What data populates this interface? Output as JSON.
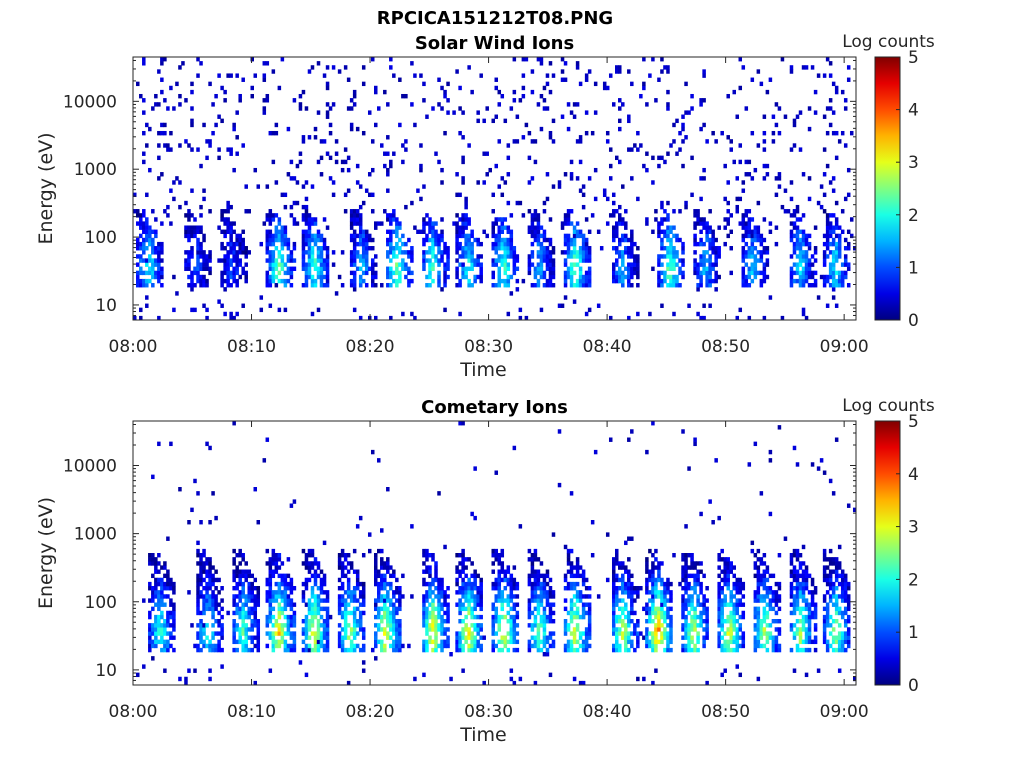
{
  "figure": {
    "title": "RPCICA151212T08.PNG"
  },
  "chart_data": [
    {
      "type": "heatmap",
      "title": "Solar Wind Ions",
      "xlabel": "Time",
      "ylabel": "Energy (eV)",
      "xlim": [
        "08:00",
        "09:01"
      ],
      "ylim": [
        6,
        45000
      ],
      "yscale": "log",
      "xticks": [
        "08:00",
        "08:10",
        "08:20",
        "08:30",
        "08:40",
        "08:50",
        "09:00"
      ],
      "yticks": [
        "10",
        "100",
        "1000",
        "10000"
      ],
      "colorbar": {
        "label": "Log counts",
        "range": [
          0,
          5
        ],
        "ticks": [
          "0",
          "1",
          "2",
          "3",
          "4",
          "5"
        ]
      },
      "grid": false,
      "bursts": [
        {
          "t": "08:01",
          "peak": 2.0
        },
        {
          "t": "08:05",
          "peak": 1.0
        },
        {
          "t": "08:08",
          "peak": 1.0
        },
        {
          "t": "08:12",
          "peak": 2.5
        },
        {
          "t": "08:15",
          "peak": 2.3
        },
        {
          "t": "08:19",
          "peak": 1.6
        },
        {
          "t": "08:22",
          "peak": 2.6
        },
        {
          "t": "08:25",
          "peak": 2.2
        },
        {
          "t": "08:28",
          "peak": 2.0
        },
        {
          "t": "08:31",
          "peak": 2.3
        },
        {
          "t": "08:34",
          "peak": 1.5
        },
        {
          "t": "08:37",
          "peak": 2.6
        },
        {
          "t": "08:41",
          "peak": 1.5
        },
        {
          "t": "08:45",
          "peak": 2.5
        },
        {
          "t": "08:48",
          "peak": 1.6
        },
        {
          "t": "08:52",
          "peak": 1.7
        },
        {
          "t": "08:56",
          "peak": 1.8
        },
        {
          "t": "08:59",
          "peak": 1.9
        }
      ]
    },
    {
      "type": "heatmap",
      "title": "Cometary Ions",
      "xlabel": "Time",
      "ylabel": "Energy (eV)",
      "xlim": [
        "08:00",
        "09:01"
      ],
      "ylim": [
        6,
        45000
      ],
      "yscale": "log",
      "xticks": [
        "08:00",
        "08:10",
        "08:20",
        "08:30",
        "08:40",
        "08:50",
        "09:00"
      ],
      "yticks": [
        "10",
        "100",
        "1000",
        "10000"
      ],
      "colorbar": {
        "label": "Log counts",
        "range": [
          0,
          5
        ],
        "ticks": [
          "0",
          "1",
          "2",
          "3",
          "4",
          "5"
        ]
      },
      "grid": false,
      "bursts": [
        {
          "t": "08:02",
          "peak": 2.2
        },
        {
          "t": "08:06",
          "peak": 2.0
        },
        {
          "t": "08:09",
          "peak": 2.3
        },
        {
          "t": "08:12",
          "peak": 3.5
        },
        {
          "t": "08:15",
          "peak": 3.3
        },
        {
          "t": "08:18",
          "peak": 2.9
        },
        {
          "t": "08:21",
          "peak": 3.3
        },
        {
          "t": "08:25",
          "peak": 3.4
        },
        {
          "t": "08:28",
          "peak": 3.4
        },
        {
          "t": "08:31",
          "peak": 3.3
        },
        {
          "t": "08:34",
          "peak": 2.5
        },
        {
          "t": "08:37",
          "peak": 3.2
        },
        {
          "t": "08:41",
          "peak": 3.0
        },
        {
          "t": "08:44",
          "peak": 3.9
        },
        {
          "t": "08:47",
          "peak": 3.0
        },
        {
          "t": "08:50",
          "peak": 3.1
        },
        {
          "t": "08:53",
          "peak": 2.9
        },
        {
          "t": "08:56",
          "peak": 2.8
        },
        {
          "t": "08:59",
          "peak": 2.8
        }
      ]
    }
  ]
}
